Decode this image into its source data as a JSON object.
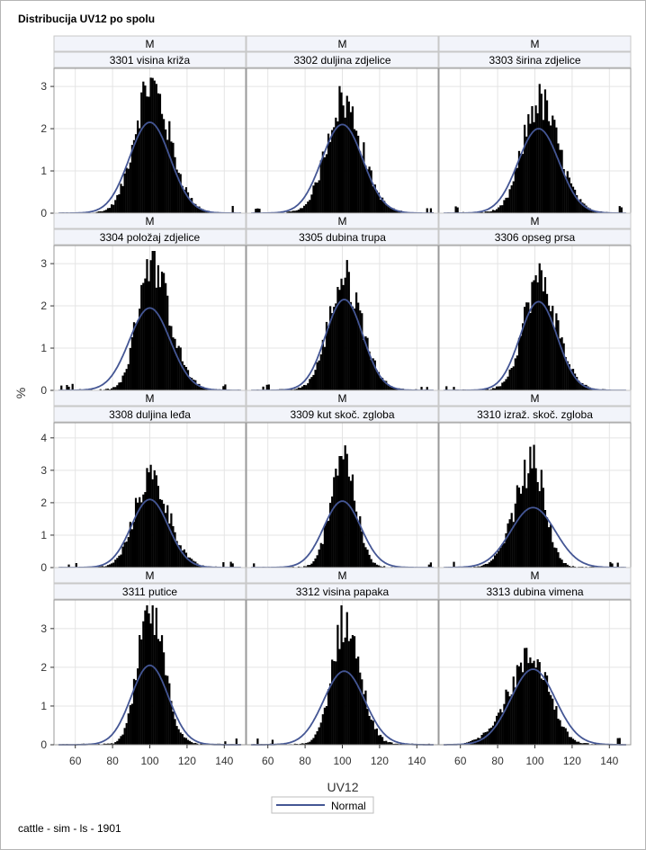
{
  "title": "Distribucija UV12 po spolu",
  "footnote": "cattle - sim - ls - 1901",
  "colors": {
    "bar": "#000000",
    "normal_curve": "#445694",
    "grid": "#e4e4e4",
    "header_bg": "#f2f4fa",
    "border": "#999999"
  },
  "chart_data": {
    "type": "histogram",
    "x_range": [
      50,
      150
    ],
    "x_ticks": [
      60,
      80,
      100,
      120,
      140
    ],
    "x_label": "UV12",
    "y_label": "%",
    "legend": [
      "Normal"
    ],
    "legend_position": "bottom",
    "grid": true,
    "row_y_ranges": [
      [
        0,
        3.3
      ],
      [
        0,
        3.3
      ],
      [
        0,
        4.3
      ],
      [
        0,
        3.6
      ]
    ],
    "row_y_ticks": [
      [
        0,
        1,
        2,
        3
      ],
      [
        0,
        1,
        2,
        3
      ],
      [
        0,
        1,
        2,
        3,
        4
      ],
      [
        0,
        1,
        2,
        3
      ]
    ],
    "panels": [
      {
        "row": 0,
        "col": 0,
        "sex": "M",
        "label": "3301 visina križa",
        "mean": 100,
        "sd": 11,
        "normal_peak": 2.15,
        "hist_peak": 3.15,
        "hist_sd": 9.5,
        "skew": 0.3
      },
      {
        "row": 0,
        "col": 1,
        "sex": "M",
        "label": "3302 duljina zdjelice",
        "mean": 100,
        "sd": 11,
        "normal_peak": 2.1,
        "hist_peak": 2.75,
        "hist_sd": 9.5,
        "skew": 0.25
      },
      {
        "row": 0,
        "col": 2,
        "sex": "M",
        "label": "3303 širina zdjelice",
        "mean": 102,
        "sd": 11,
        "normal_peak": 2.0,
        "hist_peak": 2.75,
        "hist_sd": 9.5,
        "skew": 0.3
      },
      {
        "row": 1,
        "col": 0,
        "sex": "M",
        "label": "3304 položaj zdjelice",
        "mean": 100,
        "sd": 11,
        "normal_peak": 1.95,
        "hist_peak": 3.2,
        "hist_sd": 8.5,
        "skew": 0.6
      },
      {
        "row": 1,
        "col": 1,
        "sex": "M",
        "label": "3305 dubina trupa",
        "mean": 101,
        "sd": 10,
        "normal_peak": 2.15,
        "hist_peak": 2.75,
        "hist_sd": 9.0,
        "skew": 0.2
      },
      {
        "row": 1,
        "col": 2,
        "sex": "M",
        "label": "3306 opseg prsa",
        "mean": 102,
        "sd": 10,
        "normal_peak": 2.1,
        "hist_peak": 2.7,
        "hist_sd": 9.0,
        "skew": 0.25
      },
      {
        "row": 2,
        "col": 0,
        "sex": "M",
        "label": "3308 duljina leđa",
        "mean": 100,
        "sd": 10,
        "normal_peak": 2.1,
        "hist_peak": 2.9,
        "hist_sd": 9.0,
        "skew": 0.3
      },
      {
        "row": 2,
        "col": 1,
        "sex": "M",
        "label": "3309 kut skoč. zgloba",
        "mean": 100,
        "sd": 10,
        "normal_peak": 2.05,
        "hist_peak": 3.7,
        "hist_sd": 6.5,
        "skew": 0.1
      },
      {
        "row": 2,
        "col": 2,
        "sex": "M",
        "label": "3310 izraž. skoč. zgloba",
        "mean": 99,
        "sd": 12,
        "normal_peak": 1.85,
        "hist_peak": 3.35,
        "hist_sd": 8.0,
        "skew": -0.5
      },
      {
        "row": 3,
        "col": 0,
        "sex": "M",
        "label": "3311 putice",
        "mean": 100,
        "sd": 10,
        "normal_peak": 2.05,
        "hist_peak": 3.6,
        "hist_sd": 7.0,
        "skew": 0.25
      },
      {
        "row": 3,
        "col": 1,
        "sex": "M",
        "label": "3312 visina papaka",
        "mean": 101,
        "sd": 11,
        "normal_peak": 1.9,
        "hist_peak": 3.3,
        "hist_sd": 7.5,
        "skew": 0.3
      },
      {
        "row": 3,
        "col": 2,
        "sex": "M",
        "label": "3313 dubina vimena",
        "mean": 99,
        "sd": 12,
        "normal_peak": 1.95,
        "hist_peak": 2.35,
        "hist_sd": 11.0,
        "skew": -0.5
      }
    ]
  }
}
